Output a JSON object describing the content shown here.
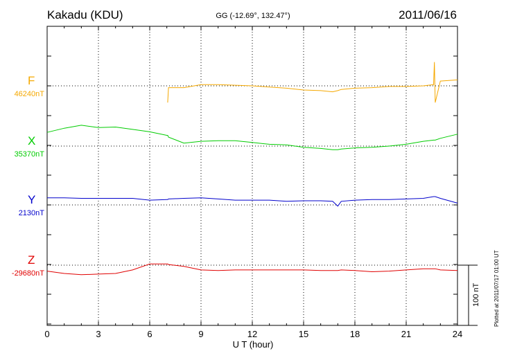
{
  "header": {
    "station": "Kakadu (KDU)",
    "coordinates": "GG (-12.69°, 132.47°)",
    "date": "2011/06/16"
  },
  "footnote": "Plotted at 2011/07/17 01:00 UT",
  "chart_data": {
    "type": "line",
    "xlabel": "U T (hour)",
    "x_ticks": [
      "0",
      "3",
      "6",
      "9",
      "12",
      "15",
      "18",
      "21",
      "24"
    ],
    "xlim": [
      0,
      24
    ],
    "grid": true,
    "scale_bar": "100 nT",
    "x": [
      0,
      1,
      2,
      3,
      4,
      5,
      6,
      7,
      7.05,
      7.1,
      8,
      9,
      10,
      11,
      12,
      13,
      14,
      15,
      16,
      16.7,
      17,
      17.2,
      18,
      19,
      20,
      21,
      22,
      22.6,
      22.65,
      22.7,
      23,
      24
    ],
    "series": [
      {
        "name": "F",
        "baseline": "46240nT",
        "color": "#f5a800",
        "values": [
          null,
          null,
          null,
          null,
          null,
          null,
          null,
          null,
          -28,
          -3,
          -3,
          2,
          2,
          1,
          0,
          -2,
          -4,
          -7,
          -8,
          -10,
          -8,
          -6,
          -4,
          -3,
          -1,
          -1,
          0,
          2,
          40,
          -28,
          8,
          10
        ]
      },
      {
        "name": "X",
        "baseline": "35370nT",
        "color": "#00cc00",
        "values": [
          23,
          30,
          35,
          31,
          32,
          28,
          24,
          18,
          18,
          15,
          5,
          8,
          9,
          9,
          6,
          3,
          2,
          -2,
          -4,
          -6,
          -6,
          -5,
          -3,
          -2,
          0,
          3,
          8,
          10,
          10,
          10,
          13,
          20
        ]
      },
      {
        "name": "Y",
        "baseline": "2130nT",
        "color": "#0000cc",
        "values": [
          12,
          12,
          11,
          11,
          11,
          11,
          8,
          9,
          9,
          10,
          11,
          12,
          10,
          8,
          8,
          8,
          6,
          7,
          7,
          6,
          -2,
          6,
          8,
          9,
          9,
          10,
          11,
          14,
          14,
          14,
          11,
          3
        ]
      },
      {
        "name": "Z",
        "baseline": "-29680nT",
        "color": "#e00000",
        "values": [
          -10,
          -14,
          -16,
          -15,
          -14,
          -8,
          2,
          2,
          2,
          1,
          -2,
          -8,
          -9,
          -8,
          -8,
          -8,
          -8,
          -8,
          -9,
          -9,
          -9,
          -8,
          -9,
          -11,
          -10,
          -8,
          -6,
          -6,
          -6,
          -6,
          -8,
          -9
        ]
      }
    ]
  }
}
